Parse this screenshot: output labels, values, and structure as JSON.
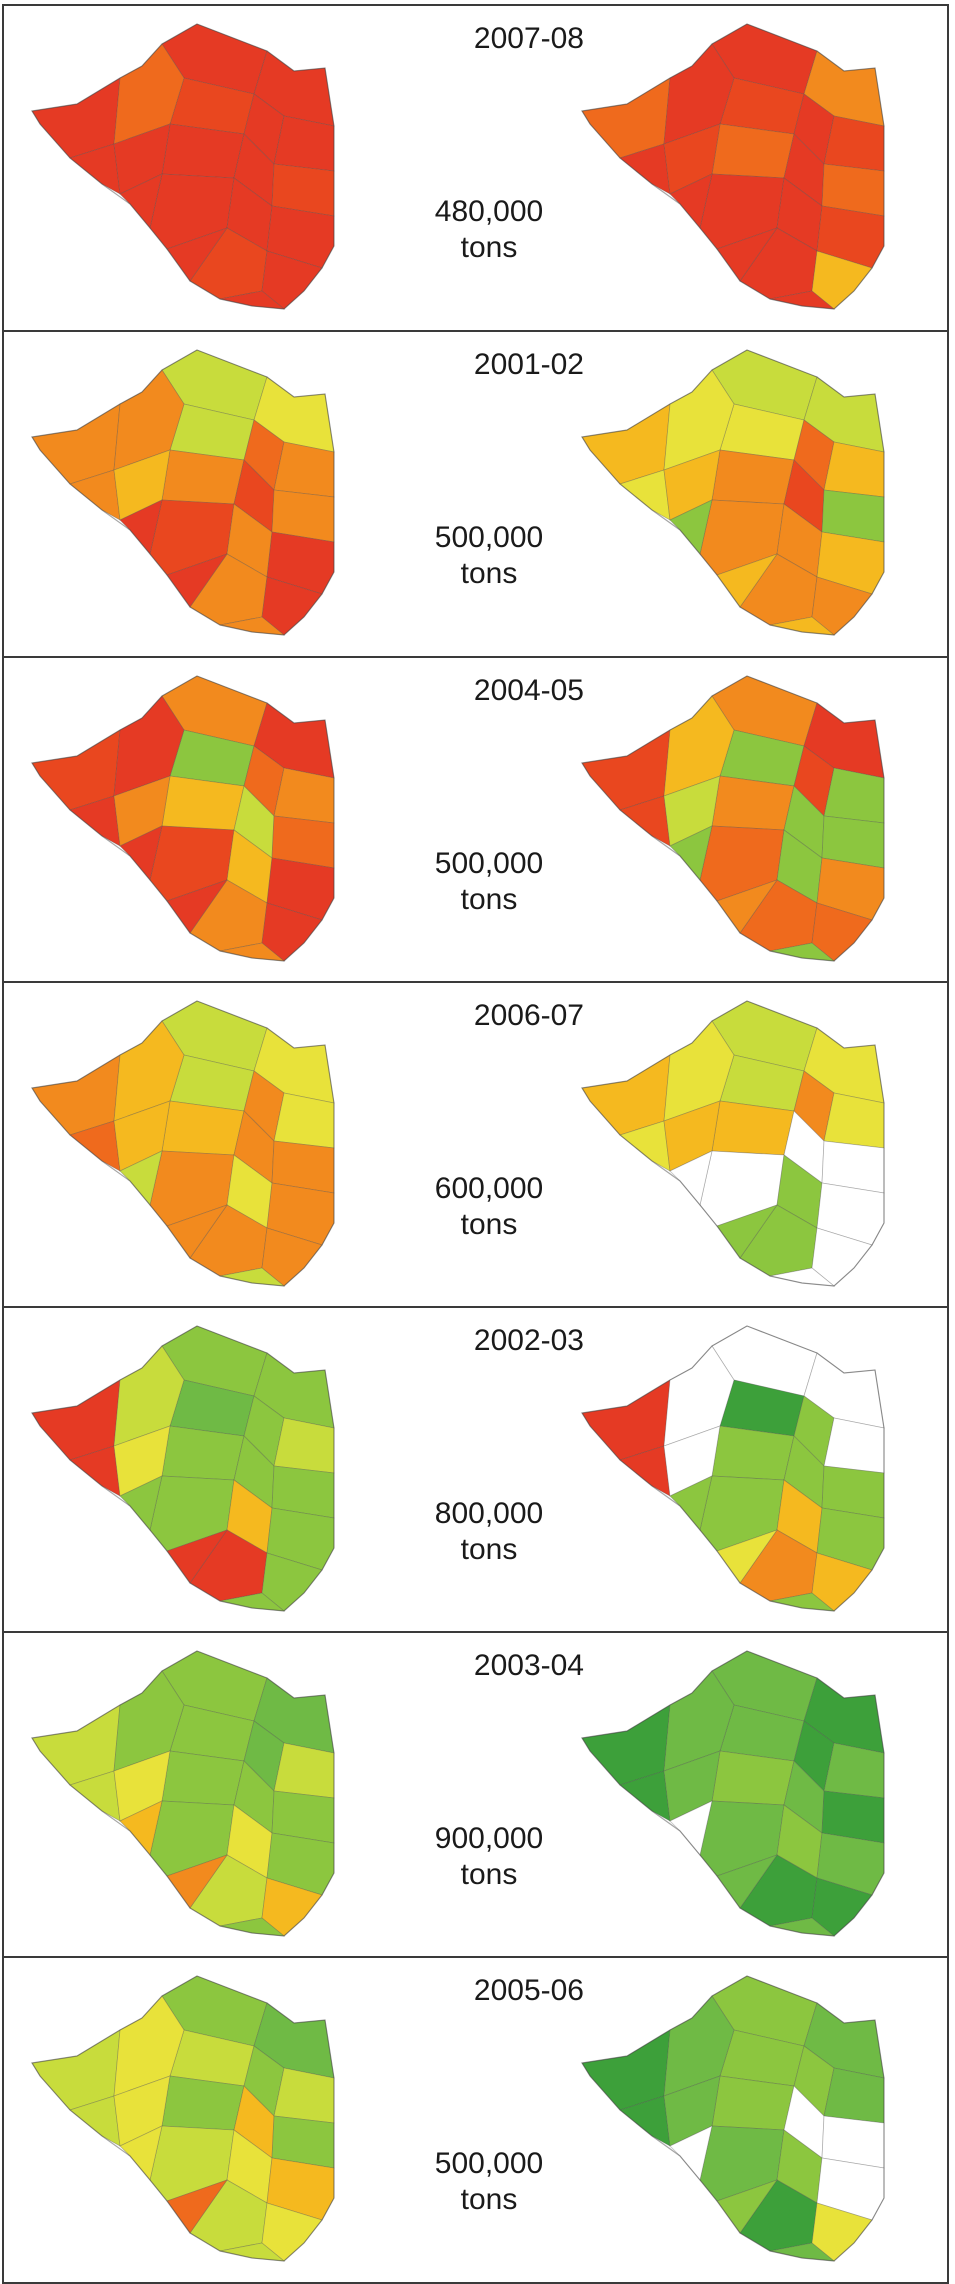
{
  "panels": [
    {
      "season": "2007-08",
      "amount": "480,000",
      "unit": "tons",
      "left_colors": [
        "#e53a24",
        "#e53a24",
        "#e9471f",
        "#e53a24",
        "#ef6a1d",
        "#e53a24",
        "#e53a24",
        "#e53a24",
        "#e53a24",
        "#e53a24",
        "#e53a24",
        "#e9471f",
        "#e53a24",
        "#e53a24",
        "#e53a24",
        "#e53a24",
        "#e9471f",
        "#e53a24",
        "#e53a24",
        "#e53a24"
      ],
      "right_colors": [
        "#e53a24",
        "#f28a1e",
        "#e9471f",
        "#ef6a1d",
        "#e53a24",
        "#e53a24",
        "#e9471f",
        "#ef6a1d",
        "#e53a24",
        "#e53a24",
        "#e9471f",
        "#ef6a1d",
        "#e53a24",
        "#e53a24",
        "#e9471f",
        "#e53a24",
        "#e53a24",
        "#e53a24",
        "#f5b91f",
        "#e53a24"
      ]
    },
    {
      "season": "2001-02",
      "amount": "500,000",
      "unit": "tons",
      "left_colors": [
        "#c8dc3c",
        "#e8e23a",
        "#c8dc3c",
        "#f28a1e",
        "#f28a1e",
        "#ef6a1d",
        "#f28a1e",
        "#f28a1e",
        "#e9471f",
        "#f28a1e",
        "#f5b91f",
        "#f28a1e",
        "#e9471f",
        "#f28a1e",
        "#e53a24",
        "#e53a24",
        "#f28a1e",
        "#e53a24",
        "#e53a24",
        "#f28a1e"
      ],
      "right_colors": [
        "#c8dc3c",
        "#c8dc3c",
        "#e8e23a",
        "#f5b91f",
        "#e8e23a",
        "#ef6a1d",
        "#f5b91f",
        "#f28a1e",
        "#e9471f",
        "#e8e23a",
        "#f5b91f",
        "#8cc63f",
        "#f28a1e",
        "#f28a1e",
        "#f5b91f",
        "#8cc63f",
        "#f28a1e",
        "#f5b91f",
        "#f28a1e",
        "#f5b91f"
      ]
    },
    {
      "season": "2004-05",
      "amount": "500,000",
      "unit": "tons",
      "left_colors": [
        "#f28a1e",
        "#e53a24",
        "#8cc63f",
        "#e9471f",
        "#e53a24",
        "#ef6a1d",
        "#f28a1e",
        "#f5b91f",
        "#c8dc3c",
        "#e53a24",
        "#f28a1e",
        "#ef6a1d",
        "#e9471f",
        "#f5b91f",
        "#e53a24",
        "#e53a24",
        "#f28a1e",
        "#e53a24",
        "#e53a24",
        "#f28a1e"
      ],
      "right_colors": [
        "#f28a1e",
        "#e53a24",
        "#8cc63f",
        "#e9471f",
        "#f5b91f",
        "#e9471f",
        "#8cc63f",
        "#f28a1e",
        "#8cc63f",
        "#e9471f",
        "#c8dc3c",
        "#8cc63f",
        "#ef6a1d",
        "#8cc63f",
        "#f28a1e",
        "#8cc63f",
        "#ef6a1d",
        "#f28a1e",
        "#ef6a1d",
        "#8cc63f"
      ]
    },
    {
      "season": "2006-07",
      "amount": "600,000",
      "unit": "tons",
      "left_colors": [
        "#c8dc3c",
        "#e8e23a",
        "#c8dc3c",
        "#f28a1e",
        "#f5b91f",
        "#f28a1e",
        "#e8e23a",
        "#f5b91f",
        "#f28a1e",
        "#ef6a1d",
        "#f5b91f",
        "#f28a1e",
        "#f28a1e",
        "#e8e23a",
        "#f28a1e",
        "#c8dc3c",
        "#f28a1e",
        "#f28a1e",
        "#f28a1e",
        "#c8dc3c"
      ],
      "right_colors": [
        "#c8dc3c",
        "#e8e23a",
        "#c8dc3c",
        "#f5b91f",
        "#e8e23a",
        "#f28a1e",
        "#e8e23a",
        "#f5b91f",
        "#ffffff",
        "#e8e23a",
        "#f5b91f",
        "#ffffff",
        "#ffffff",
        "#8cc63f",
        "#ffffff",
        "#ffffff",
        "#8cc63f",
        "#8cc63f",
        "#ffffff",
        "#ffffff"
      ]
    },
    {
      "season": "2002-03",
      "amount": "800,000",
      "unit": "tons",
      "left_colors": [
        "#8cc63f",
        "#8cc63f",
        "#6fba45",
        "#e53a24",
        "#c8dc3c",
        "#8cc63f",
        "#c8dc3c",
        "#8cc63f",
        "#8cc63f",
        "#e53a24",
        "#e8e23a",
        "#8cc63f",
        "#8cc63f",
        "#f5b91f",
        "#8cc63f",
        "#8cc63f",
        "#e53a24",
        "#e53a24",
        "#8cc63f",
        "#8cc63f"
      ],
      "right_colors": [
        "#ffffff",
        "#ffffff",
        "#3da03a",
        "#e53a24",
        "#ffffff",
        "#8cc63f",
        "#ffffff",
        "#8cc63f",
        "#8cc63f",
        "#e53a24",
        "#ffffff",
        "#8cc63f",
        "#8cc63f",
        "#f5b91f",
        "#8cc63f",
        "#8cc63f",
        "#f28a1e",
        "#e8e23a",
        "#f5b91f",
        "#8cc63f"
      ]
    },
    {
      "season": "2003-04",
      "amount": "900,000",
      "unit": "tons",
      "left_colors": [
        "#8cc63f",
        "#6fba45",
        "#8cc63f",
        "#c8dc3c",
        "#8cc63f",
        "#6fba45",
        "#c8dc3c",
        "#8cc63f",
        "#8cc63f",
        "#c8dc3c",
        "#e8e23a",
        "#8cc63f",
        "#8cc63f",
        "#e8e23a",
        "#8cc63f",
        "#f5b91f",
        "#c8dc3c",
        "#f28a1e",
        "#f5b91f",
        "#8cc63f"
      ],
      "right_colors": [
        "#6fba45",
        "#3da03a",
        "#6fba45",
        "#3da03a",
        "#6fba45",
        "#3da03a",
        "#6fba45",
        "#8cc63f",
        "#6fba45",
        "#3da03a",
        "#6fba45",
        "#3da03a",
        "#6fba45",
        "#8cc63f",
        "#6fba45",
        "#ffffff",
        "#3da03a",
        "#6fba45",
        "#3da03a",
        "#6fba45"
      ]
    },
    {
      "season": "2005-06",
      "amount": "500,000",
      "unit": "tons",
      "left_colors": [
        "#8cc63f",
        "#6fba45",
        "#c8dc3c",
        "#c8dc3c",
        "#e8e23a",
        "#8cc63f",
        "#c8dc3c",
        "#8cc63f",
        "#f5b91f",
        "#c8dc3c",
        "#e8e23a",
        "#8cc63f",
        "#c8dc3c",
        "#e8e23a",
        "#f5b91f",
        "#e8e23a",
        "#c8dc3c",
        "#ef6a1d",
        "#e8e23a",
        "#c8dc3c"
      ],
      "right_colors": [
        "#8cc63f",
        "#6fba45",
        "#8cc63f",
        "#3da03a",
        "#6fba45",
        "#8cc63f",
        "#6fba45",
        "#8cc63f",
        "#ffffff",
        "#3da03a",
        "#6fba45",
        "#ffffff",
        "#6fba45",
        "#8cc63f",
        "#ffffff",
        "#ffffff",
        "#3da03a",
        "#8cc63f",
        "#e8e23a",
        "#6fba45"
      ]
    }
  ]
}
